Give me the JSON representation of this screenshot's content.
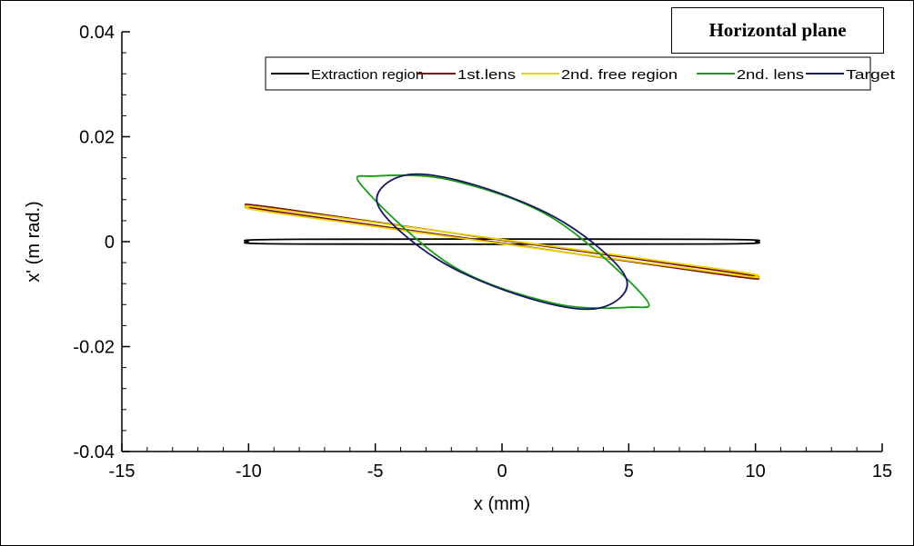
{
  "chart_data": {
    "type": "line",
    "title": "Horizontal plane",
    "xlabel": "x (mm)",
    "ylabel": "x' (m rad.)",
    "xlim": [
      -15,
      15
    ],
    "ylim": [
      -0.04,
      0.04
    ],
    "xticks": [
      -15,
      -10,
      -5,
      0,
      5,
      10,
      15
    ],
    "xtick_labels": [
      "-15",
      "-10",
      "-5",
      "0",
      "5",
      "10",
      "15"
    ],
    "yticks": [
      -0.04,
      -0.02,
      0,
      0.02,
      0.04
    ],
    "ytick_labels": [
      "-0.04",
      "-0.02",
      "0",
      "0.02",
      "0.04"
    ],
    "grid": false,
    "legend_position": "top-right",
    "series": [
      {
        "name": "Extraction region",
        "color": "#000000",
        "shape": "ellipse",
        "points": [
          [
            -10,
            0
          ],
          [
            -8,
            0.00045
          ],
          [
            8,
            0.00045
          ],
          [
            10,
            0
          ],
          [
            8,
            -0.00045
          ],
          [
            -8,
            -0.00045
          ],
          [
            -10,
            0
          ]
        ]
      },
      {
        "name": "1st.lens",
        "color": "#7b0c0c",
        "shape": "ellipse",
        "points": [
          [
            -10,
            0.0068
          ],
          [
            -9,
            0.0065
          ],
          [
            0,
            0.0003
          ],
          [
            9,
            -0.0058
          ],
          [
            10,
            -0.0068
          ],
          [
            9,
            -0.0065
          ],
          [
            0,
            -0.0003
          ],
          [
            -9,
            0.0058
          ],
          [
            -10,
            0.0068
          ]
        ]
      },
      {
        "name": "2nd. free region",
        "color": "#e8d400",
        "shape": "ellipse",
        "points": [
          [
            -10,
            0.0066
          ],
          [
            -9,
            0.0062
          ],
          [
            0,
            0.0004
          ],
          [
            9,
            -0.0055
          ],
          [
            10,
            -0.0066
          ],
          [
            9,
            -0.0062
          ],
          [
            0,
            -0.0004
          ],
          [
            -9,
            0.0055
          ],
          [
            -10,
            0.0066
          ]
        ]
      },
      {
        "name": "2nd. lens",
        "color": "#1a9b1a",
        "shape": "ellipse",
        "points": [
          [
            -5.5,
            0.0105
          ],
          [
            -5,
            0.0125
          ],
          [
            -2,
            0.0117
          ],
          [
            2,
            0.0045
          ],
          [
            5.6,
            -0.0105
          ],
          [
            5,
            -0.0125
          ],
          [
            2,
            -0.0117
          ],
          [
            -2,
            -0.0045
          ],
          [
            -5.5,
            0.0105
          ]
        ]
      },
      {
        "name": "Target",
        "color": "#15165c",
        "shape": "ellipse",
        "points": [
          [
            -4.9,
            0.007
          ],
          [
            -3.8,
            0.0127
          ],
          [
            -1,
            0.0107
          ],
          [
            2.5,
            0.0035
          ],
          [
            4.9,
            -0.007
          ],
          [
            3.8,
            -0.0127
          ],
          [
            1,
            -0.0107
          ],
          [
            -2.5,
            -0.0035
          ],
          [
            -4.9,
            0.007
          ]
        ]
      }
    ]
  }
}
